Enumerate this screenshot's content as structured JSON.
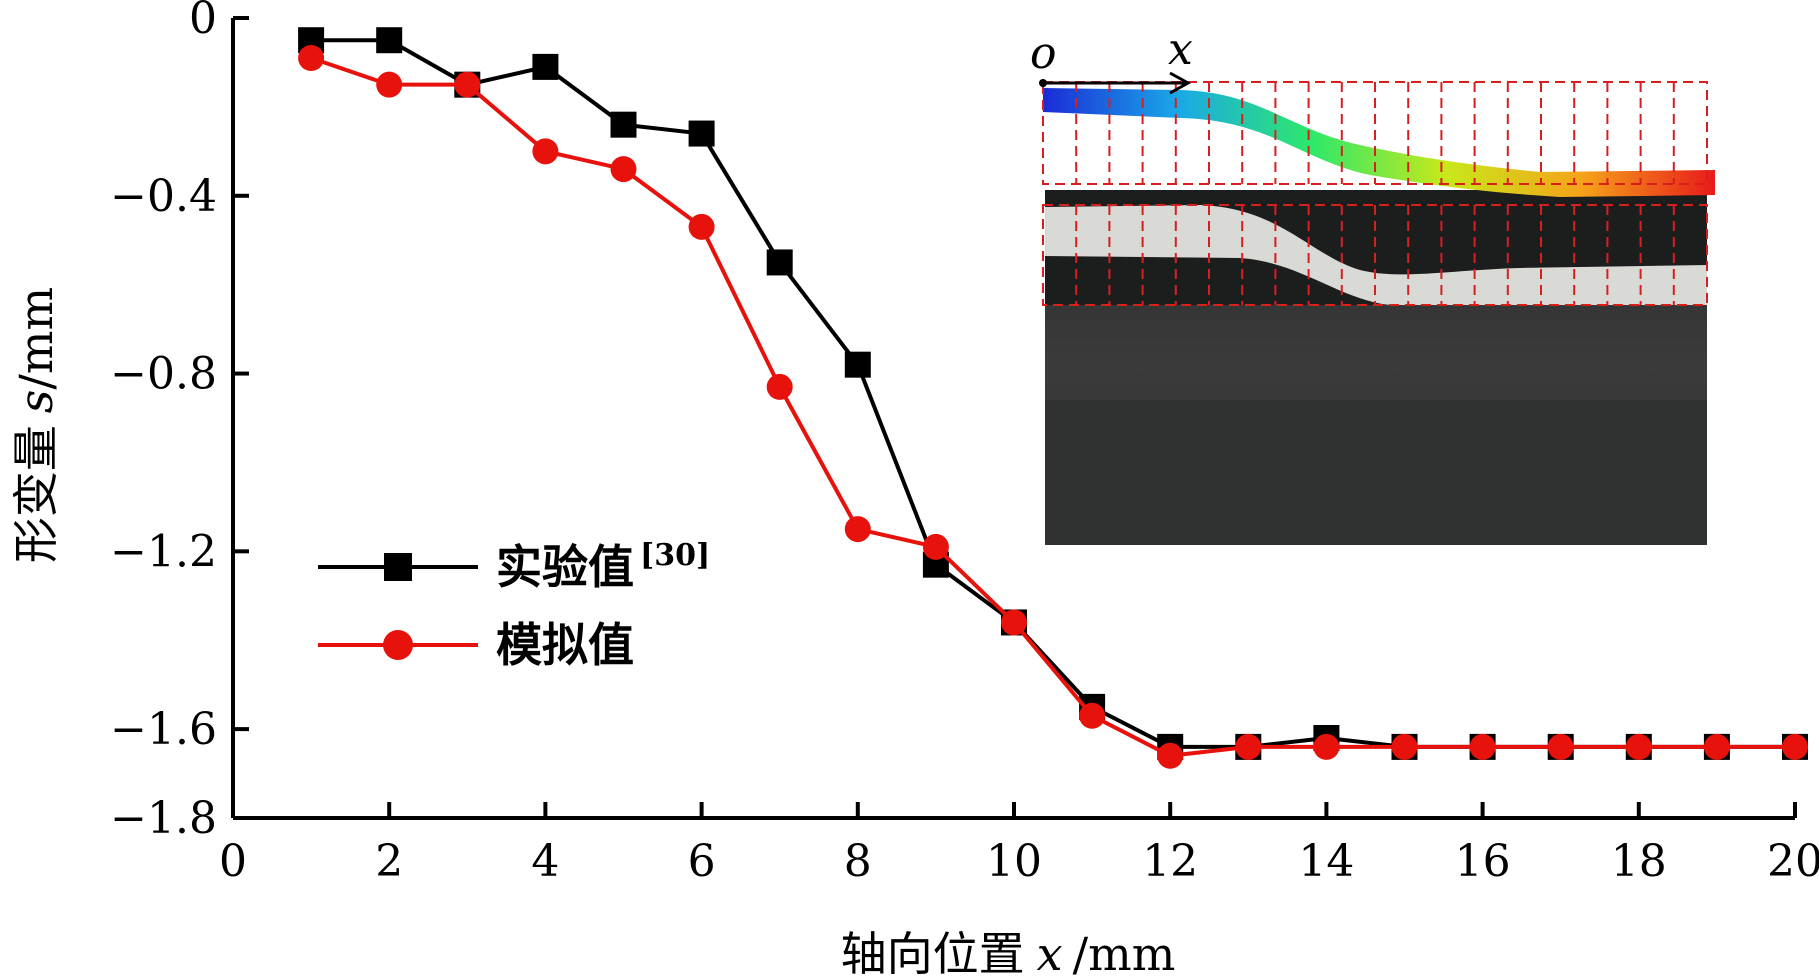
{
  "chart_data": {
    "type": "line",
    "xlabel": "轴向位置 x /mm",
    "xlabel_parts": {
      "text": "轴向位置",
      "var": "x",
      "unit": "/mm"
    },
    "ylabel": "形变量 s/mm",
    "ylabel_parts": {
      "text": "形变量",
      "var": "s",
      "unit": "/mm"
    },
    "xlim": [
      0,
      20
    ],
    "ylim": [
      -1.8,
      0
    ],
    "x_ticks": [
      0,
      2,
      4,
      6,
      8,
      10,
      12,
      14,
      16,
      18,
      20
    ],
    "x_tick_labels": [
      "0",
      "2",
      "4",
      "6",
      "8",
      "10",
      "12",
      "14",
      "16",
      "18",
      "20"
    ],
    "y_ticks": [
      0,
      -0.4,
      -0.8,
      -1.2,
      -1.6,
      -1.8
    ],
    "y_tick_labels": [
      "0",
      "−0.4",
      "−0.8",
      "−1.2",
      "−1.6",
      "−1.8"
    ],
    "grid": false,
    "legend_position": "center-left",
    "series": [
      {
        "name": "实验值",
        "name_sup": "[30]",
        "color": "#000000",
        "marker": "square",
        "x": [
          1,
          2,
          3,
          4,
          5,
          6,
          7,
          8,
          9,
          10,
          11,
          12,
          13,
          14,
          15,
          16,
          17,
          18,
          19,
          20
        ],
        "values": [
          -0.05,
          -0.05,
          -0.15,
          -0.11,
          -0.24,
          -0.26,
          -0.55,
          -0.78,
          -1.23,
          -1.36,
          -1.55,
          -1.64,
          -1.64,
          -1.62,
          -1.64,
          -1.64,
          -1.64,
          -1.64,
          -1.64,
          -1.64
        ]
      },
      {
        "name": "模拟值",
        "color": "#e8120c",
        "marker": "circle",
        "x": [
          1,
          2,
          3,
          4,
          5,
          6,
          7,
          8,
          9,
          10,
          11,
          12,
          13,
          14,
          15,
          16,
          17,
          18,
          19,
          20
        ],
        "values": [
          -0.09,
          -0.15,
          -0.15,
          -0.3,
          -0.34,
          -0.47,
          -0.83,
          -1.15,
          -1.19,
          -1.36,
          -1.57,
          -1.66,
          -1.64,
          -1.64,
          -1.64,
          -1.64,
          -1.64,
          -1.64,
          -1.64,
          -1.64
        ]
      }
    ],
    "inset": {
      "origin_label": "o",
      "axis_label": "x",
      "gradient_colors": [
        "#1a2bd6",
        "#1aa8e8",
        "#2ee86a",
        "#c8e81a",
        "#f5a41a",
        "#e81a1a"
      ],
      "frame_color": "#d91e1e"
    }
  }
}
